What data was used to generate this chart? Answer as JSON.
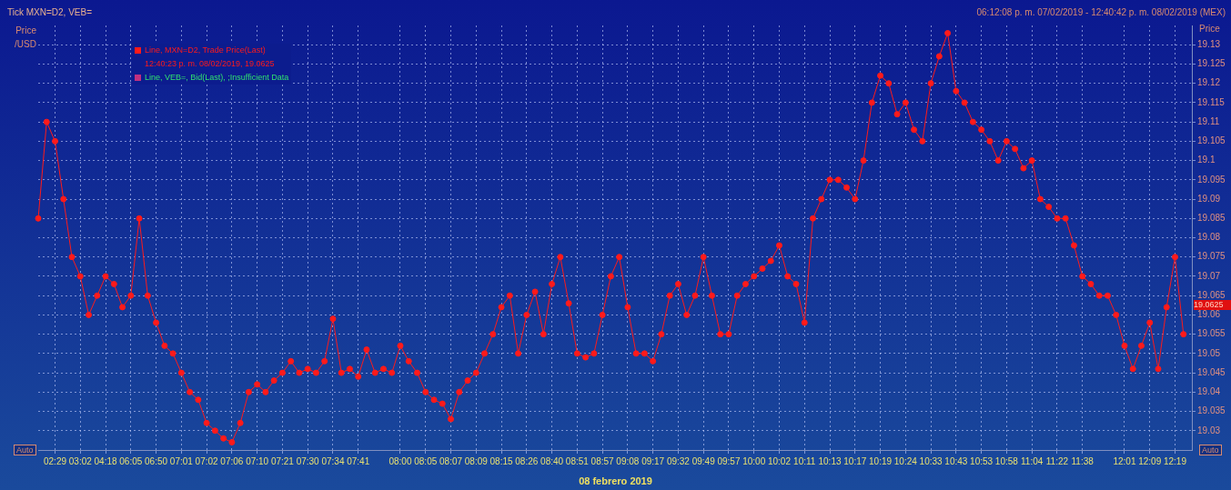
{
  "chart_data": {
    "type": "line",
    "title": "Tick MXN=D2, VEB=",
    "subtitle": "06:12:08 p. m. 07/02/2019 - 12:40:42 p. m. 08/02/2019 (MEX)",
    "xlabel": "08 febrero 2019",
    "ylabel": "Price /USD",
    "y2label": "Price",
    "categories": [
      null,
      null,
      "02:29",
      null,
      null,
      "03:02",
      null,
      null,
      "04:18",
      null,
      null,
      "06:05",
      null,
      null,
      "06:50",
      null,
      null,
      "07:01",
      null,
      null,
      "07:02",
      null,
      null,
      "07:06",
      null,
      null,
      "07:10",
      null,
      null,
      "07:21",
      null,
      null,
      "07:30",
      null,
      null,
      "07:34",
      null,
      null,
      "07:41",
      null,
      null,
      null,
      null,
      "08:00",
      null,
      null,
      "08:05",
      null,
      null,
      "08:07",
      null,
      null,
      "08:09",
      null,
      null,
      "08:15",
      null,
      null,
      "08:26",
      null,
      null,
      "08:40",
      null,
      null,
      "08:51",
      null,
      null,
      "08:57",
      null,
      null,
      "09:08",
      null,
      null,
      "09:17",
      null,
      null,
      "09:32",
      null,
      null,
      "09:49",
      null,
      null,
      "09:57",
      null,
      null,
      "10:00",
      null,
      null,
      "10:02",
      null,
      null,
      "10:11",
      null,
      null,
      "10:13",
      null,
      null,
      "10:17",
      null,
      null,
      "10:19",
      null,
      null,
      "10:24",
      null,
      null,
      "10:33",
      null,
      null,
      "10:43",
      null,
      null,
      "10:53",
      null,
      null,
      "10:58",
      null,
      null,
      "11:04",
      null,
      null,
      "11:22",
      null,
      null,
      "11:38",
      null,
      null,
      null,
      null,
      "12:01",
      null,
      null,
      "12:09",
      null,
      null,
      "12:19",
      null,
      null
    ],
    "series": [
      {
        "name": "Line, MXN=D2, Trade Price(Last)",
        "color": "#ff1a1a",
        "values": [
          19.085,
          19.11,
          19.105,
          19.09,
          19.075,
          19.07,
          19.06,
          19.065,
          19.07,
          19.068,
          19.062,
          19.065,
          19.085,
          19.065,
          19.058,
          19.052,
          19.05,
          19.045,
          19.04,
          19.038,
          19.032,
          19.03,
          19.028,
          19.027,
          19.032,
          19.04,
          19.042,
          19.04,
          19.043,
          19.045,
          19.048,
          19.045,
          19.046,
          19.045,
          19.048,
          19.059,
          19.045,
          19.046,
          19.044,
          19.051,
          19.045,
          19.046,
          19.045,
          19.052,
          19.048,
          19.045,
          19.04,
          19.038,
          19.037,
          19.033,
          19.04,
          19.043,
          19.045,
          19.05,
          19.055,
          19.062,
          19.065,
          19.05,
          19.06,
          19.066,
          19.055,
          19.068,
          19.075,
          19.063,
          19.05,
          19.049,
          19.05,
          19.06,
          19.07,
          19.075,
          19.062,
          19.05,
          19.05,
          19.048,
          19.055,
          19.065,
          19.068,
          19.06,
          19.065,
          19.075,
          19.065,
          19.055,
          19.055,
          19.065,
          19.068,
          19.07,
          19.072,
          19.074,
          19.078,
          19.07,
          19.068,
          19.058,
          19.085,
          19.09,
          19.095,
          19.095,
          19.093,
          19.09,
          19.1,
          19.115,
          19.122,
          19.12,
          19.112,
          19.115,
          19.108,
          19.105,
          19.12,
          19.127,
          19.133,
          19.118,
          19.115,
          19.11,
          19.108,
          19.105,
          19.1,
          19.105,
          19.103,
          19.098,
          19.1,
          19.09,
          19.088,
          19.085,
          19.085,
          19.078,
          19.07,
          19.068,
          19.065,
          19.065,
          19.06,
          19.052,
          19.046,
          19.052,
          19.058,
          19.046,
          19.062,
          19.075,
          19.055,
          null
        ]
      }
    ],
    "ylim": [
      19.025,
      19.135
    ],
    "yticks": [
      19.03,
      19.035,
      19.04,
      19.045,
      19.05,
      19.055,
      19.06,
      19.065,
      19.07,
      19.075,
      19.08,
      19.085,
      19.09,
      19.095,
      19.1,
      19.105,
      19.11,
      19.115,
      19.12,
      19.125,
      19.13
    ],
    "annotations": [
      "12:40:23 p. m. 08/02/2019, 19.0625",
      "Line, VEB=, Bid(Last), ;Insufficient Data",
      "Auto",
      "Auto",
      "19.0625"
    ],
    "grid": true,
    "legend": "top left",
    "marker": "circle",
    "line_style": "solid"
  }
}
